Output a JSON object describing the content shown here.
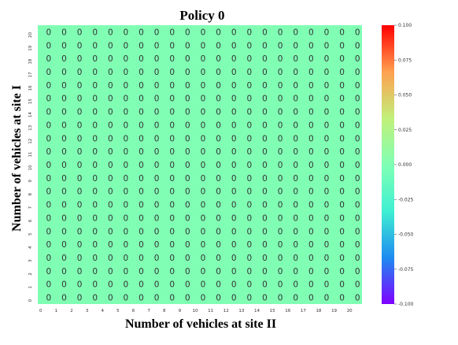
{
  "chart_data": {
    "type": "heatmap",
    "title": "Policy 0",
    "xlabel": "Number  of vehicles at site II",
    "ylabel": "Number  of vehicles at site I",
    "x_categories": [
      "0",
      "1",
      "2",
      "3",
      "4",
      "5",
      "6",
      "7",
      "8",
      "9",
      "10",
      "11",
      "12",
      "13",
      "14",
      "15",
      "16",
      "17",
      "18",
      "19",
      "20"
    ],
    "y_categories": [
      "0",
      "1",
      "2",
      "3",
      "4",
      "5",
      "6",
      "7",
      "8",
      "9",
      "10",
      "11",
      "12",
      "13",
      "14",
      "15",
      "16",
      "17",
      "18",
      "19",
      "20"
    ],
    "values_all": 0,
    "cell_label": "0",
    "colorbar": {
      "min": -0.1,
      "max": 0.1,
      "ticks": [
        "0.100",
        "0.075",
        "0.050",
        "0.025",
        "0.000",
        "-0.025",
        "-0.050",
        "-0.075",
        "-0.100"
      ],
      "tick_values": [
        0.1,
        0.075,
        0.05,
        0.025,
        0.0,
        -0.025,
        -0.05,
        -0.075,
        -0.1
      ],
      "colors": [
        "#7f00ff",
        "#1e8cf0",
        "#3ff0d2",
        "#80ffb4",
        "#c2f07a",
        "#ffa050",
        "#ff0000"
      ]
    },
    "cell_color": "#80ffb4"
  }
}
